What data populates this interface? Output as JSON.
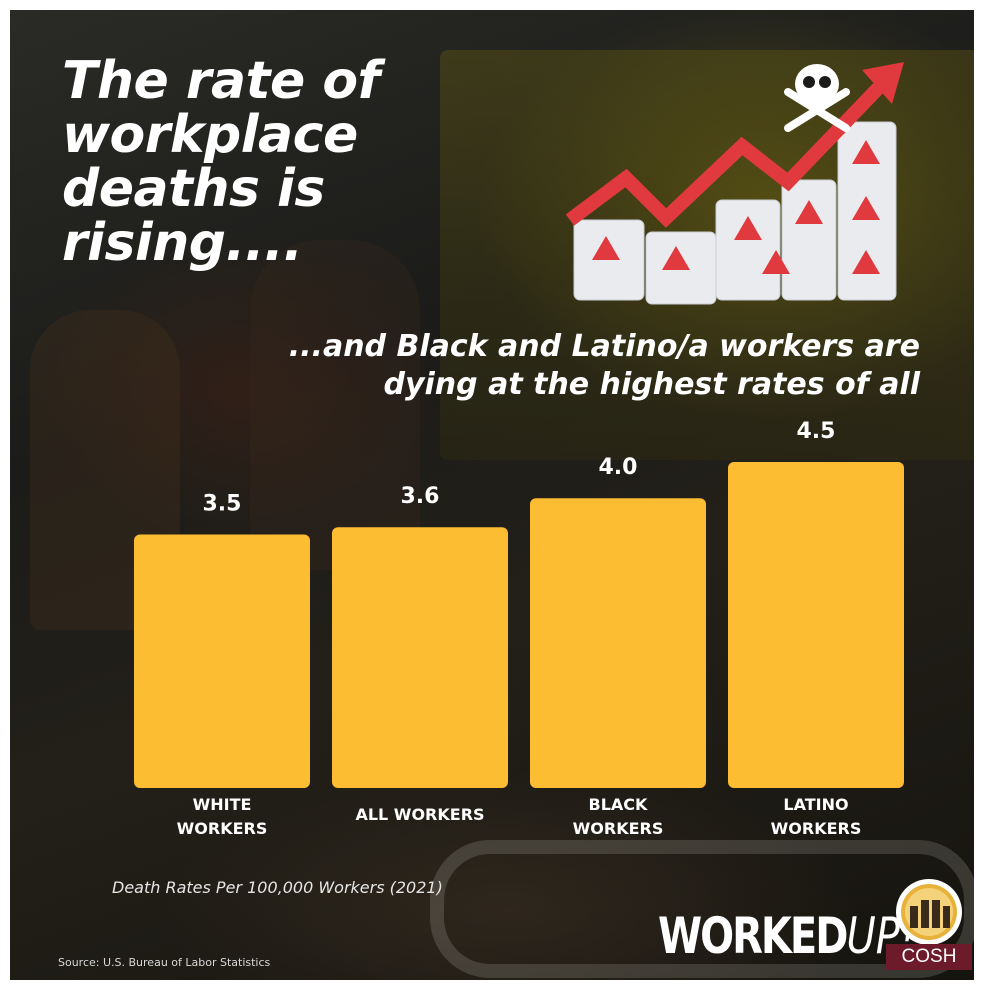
{
  "title": "The rate of\nworkplace\ndeaths is\nrising....",
  "subtitle": "...and Black and Latino/a workers are\ndying at the highest rates of all",
  "caption": "Death Rates Per 100,000 Workers (2021)",
  "source": "Source: U.S. Bureau of Labor Statistics",
  "brand": {
    "main": "WORKED",
    "accent": "UP!"
  },
  "org_badge": "COSH",
  "illustration": {
    "icons": [
      "skull-crossbones-icon",
      "rising-arrow-icon",
      "warning-document-icon"
    ]
  },
  "colors": {
    "bar": "#FDBD33",
    "arrow": "#E03A3E",
    "badge": "#6D1B2B",
    "text": "#FFFFFF"
  },
  "chart_data": {
    "type": "bar",
    "categories": [
      "WHITE\nWORKERS",
      "ALL WORKERS",
      "BLACK\nWORKERS",
      "LATINO\nWORKERS"
    ],
    "values": [
      3.5,
      3.6,
      4.0,
      4.5
    ],
    "value_labels": [
      "3.5",
      "3.6",
      "4.0",
      "4.5"
    ],
    "title": "",
    "xlabel": "",
    "ylabel": "",
    "ylim": [
      0,
      4.5
    ],
    "grid": false,
    "legend": "none"
  }
}
